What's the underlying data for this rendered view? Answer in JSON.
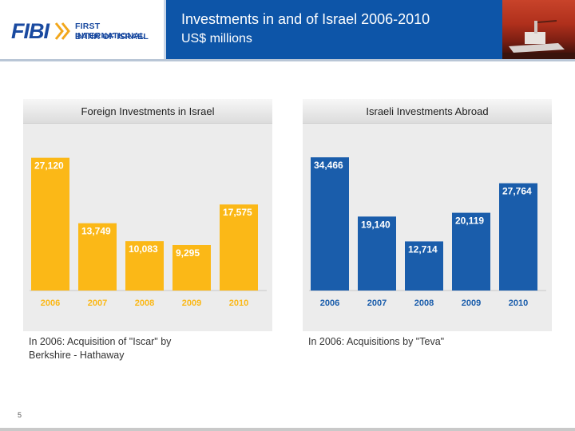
{
  "header": {
    "logo_text": "FIBI",
    "logo_line1": "FIRST INTERNATIONAL",
    "logo_line2": "BANK OF ISRAEL",
    "title": "Investments in and of Israel 2006-2010",
    "subtitle": "US$ millions"
  },
  "colors": {
    "header_blue": "#0d55a8",
    "foreign_bar": "#fbb817",
    "israeli_bar": "#1a5dab"
  },
  "chart_data": [
    {
      "type": "bar",
      "title": "Foreign Investments in Israel",
      "categories": [
        "2006",
        "2007",
        "2008",
        "2009",
        "2010"
      ],
      "values": [
        27120,
        13749,
        10083,
        9295,
        17575
      ],
      "value_labels": [
        "27,120",
        "13,749",
        "10,083",
        "9,295",
        "17,575"
      ],
      "ylim": [
        0,
        30000
      ],
      "color": "#fbb817",
      "grid": false,
      "legend": "none"
    },
    {
      "type": "bar",
      "title": "Israeli Investments Abroad",
      "categories": [
        "2006",
        "2007",
        "2008",
        "2009",
        "2010"
      ],
      "values": [
        34466,
        19140,
        12714,
        20119,
        27764
      ],
      "value_labels": [
        "34,466",
        "19,140",
        "12,714",
        "20,119",
        "27,764"
      ],
      "ylim": [
        0,
        38000
      ],
      "color": "#1a5dab",
      "grid": false,
      "legend": "none"
    }
  ],
  "captions": {
    "left": "In 2006: Acquisition of \"Iscar\" by Berkshire - Hathaway",
    "right": "In 2006: Acquisitions by \"Teva\""
  },
  "page_number": "5"
}
